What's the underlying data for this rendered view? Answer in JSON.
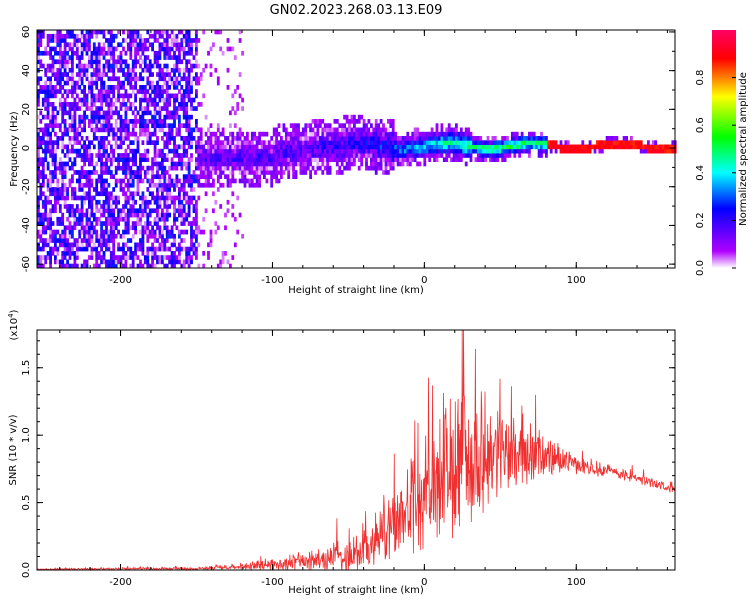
{
  "title": "GN02.2023.268.03.13.E09",
  "chart_data": [
    {
      "type": "heatmap",
      "name": "spectrogram",
      "xlabel": "Height of straight line (km)",
      "ylabel": "Frequency (Hz)",
      "xlim": [
        -255,
        165
      ],
      "ylim": [
        -62,
        61
      ],
      "xticks": [
        -200,
        -100,
        0,
        100
      ],
      "yticks": [
        60,
        40,
        20,
        0,
        -20,
        -40,
        -60
      ],
      "colorbar": {
        "label": "Normalized spectral amplitude",
        "range": [
          0.0,
          1.0
        ],
        "ticks": [
          "0.0",
          "0.2",
          "0.4",
          "0.6",
          "0.8"
        ],
        "colors": [
          "#ffffff",
          "#b000ff",
          "#0000ff",
          "#00ffff",
          "#00ff00",
          "#ffff00",
          "#ff0000",
          "#ff0066"
        ]
      },
      "description_points": {
        "noise_region_x": [
          -255,
          -150
        ],
        "signal_band_center_hz": 0,
        "signal_band_halfwidth_hz": [
          8,
          9,
          10,
          9,
          6,
          4,
          2
        ]
      }
    },
    {
      "type": "line",
      "name": "snr",
      "xlabel": "Height of straight line (km)",
      "ylabel": "SNR (10 * v/v)",
      "y_multiplier": "(x10^4)",
      "y_multiplier_base": "(x10",
      "y_multiplier_exp": "4",
      "y_multiplier_close": ")",
      "xlim": [
        -255,
        165
      ],
      "ylim": [
        0,
        1.78
      ],
      "xticks": [
        -200,
        -100,
        0,
        100
      ],
      "yticks": [
        "0.0",
        "0.5",
        "1.0",
        "1.5"
      ],
      "color": "#f03030",
      "envelope": {
        "x": [
          -255,
          -200,
          -150,
          -130,
          -100,
          -80,
          -60,
          -40,
          -25,
          -20,
          -10,
          0,
          10,
          20,
          30,
          40,
          50,
          60,
          70,
          80,
          90,
          100,
          120,
          140,
          165
        ],
        "base": [
          0.005,
          0.01,
          0.01,
          0.02,
          0.04,
          0.06,
          0.09,
          0.15,
          0.25,
          0.35,
          0.45,
          0.55,
          0.65,
          0.75,
          0.82,
          0.86,
          0.88,
          0.86,
          0.86,
          0.84,
          0.82,
          0.78,
          0.74,
          0.68,
          0.6
        ],
        "noise": [
          0.005,
          0.01,
          0.01,
          0.02,
          0.05,
          0.08,
          0.12,
          0.18,
          0.22,
          0.28,
          0.35,
          0.42,
          0.55,
          0.6,
          0.5,
          0.42,
          0.35,
          0.3,
          0.25,
          0.18,
          0.1,
          0.06,
          0.05,
          0.04,
          0.03
        ]
      }
    }
  ]
}
